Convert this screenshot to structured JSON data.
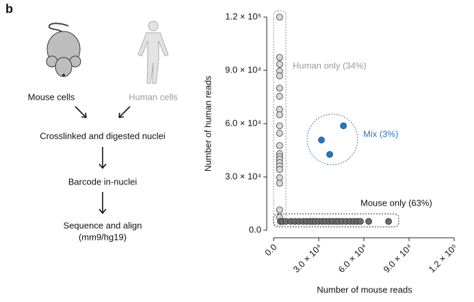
{
  "panel_label": "b",
  "diagram": {
    "mouse": "Mouse cells",
    "human": "Human cells",
    "steps": [
      "Crosslinked and digested nuclei",
      "Barcode in-nuclei",
      "Sequence and align",
      "(mm9/hg19)"
    ]
  },
  "chart_data": {
    "type": "scatter",
    "x_label": "Number of mouse reads",
    "y_label": "Number of human reads",
    "xlim": [
      0,
      120000
    ],
    "ylim": [
      0,
      120000
    ],
    "xticks": [
      {
        "value": 0,
        "label": "0.0"
      },
      {
        "value": 30000,
        "label": "3.0 × 10⁴"
      },
      {
        "value": 60000,
        "label": "6.0 × 10⁴"
      },
      {
        "value": 90000,
        "label": "9.0 × 10⁴"
      },
      {
        "value": 120000,
        "label": "1.2 × 10⁵"
      }
    ],
    "yticks": [
      {
        "value": 0,
        "label": "0.0"
      },
      {
        "value": 30000,
        "label": "3.0 × 10⁴"
      },
      {
        "value": 60000,
        "label": "6.0 × 10⁴"
      },
      {
        "value": 90000,
        "label": "9.0 × 10⁴"
      },
      {
        "value": 120000,
        "label": "1.2 × 10⁵"
      }
    ],
    "series": [
      {
        "name": "Human only (34%)",
        "color": "#d9d9d9",
        "label_color": "#9a9a9a",
        "x": [
          4000,
          4000,
          4000,
          4000,
          4000,
          4000,
          4000,
          4000,
          4000,
          4000,
          4000,
          4000,
          4000,
          4000,
          4000,
          4000,
          4000,
          4000,
          4000,
          4000,
          4000,
          4000
        ],
        "values": [
          120000,
          97300,
          93500,
          89600,
          86900,
          80000,
          75400,
          68100,
          65000,
          58800,
          54600,
          47700,
          43100,
          41500,
          40000,
          38100,
          36200,
          34200,
          29600,
          26500,
          11500,
          7300
        ]
      },
      {
        "name": "Mouse only (63%)",
        "color": "#6b6b6b",
        "label_color": "#111111",
        "x": [
          4500,
          5900,
          8200,
          11400,
          14100,
          16800,
          19500,
          21800,
          24100,
          25900,
          27700,
          30000,
          32300,
          34500,
          36800,
          39100,
          41400,
          43200,
          45500,
          48200,
          50900,
          53200,
          55500,
          57700,
          63200,
          76400
        ],
        "values": [
          5000,
          5000,
          5000,
          5000,
          5000,
          5000,
          5000,
          5000,
          5000,
          5000,
          5000,
          5000,
          5000,
          5000,
          5000,
          5000,
          5000,
          5000,
          5000,
          5000,
          5000,
          5000,
          5000,
          5000,
          5000,
          5000
        ]
      },
      {
        "name": "Mix (3%)",
        "color": "#2e75b6",
        "label_color": "#2e75b6",
        "x": [
          46400,
          31800,
          37300
        ],
        "values": [
          58800,
          50800,
          42700
        ]
      }
    ]
  }
}
